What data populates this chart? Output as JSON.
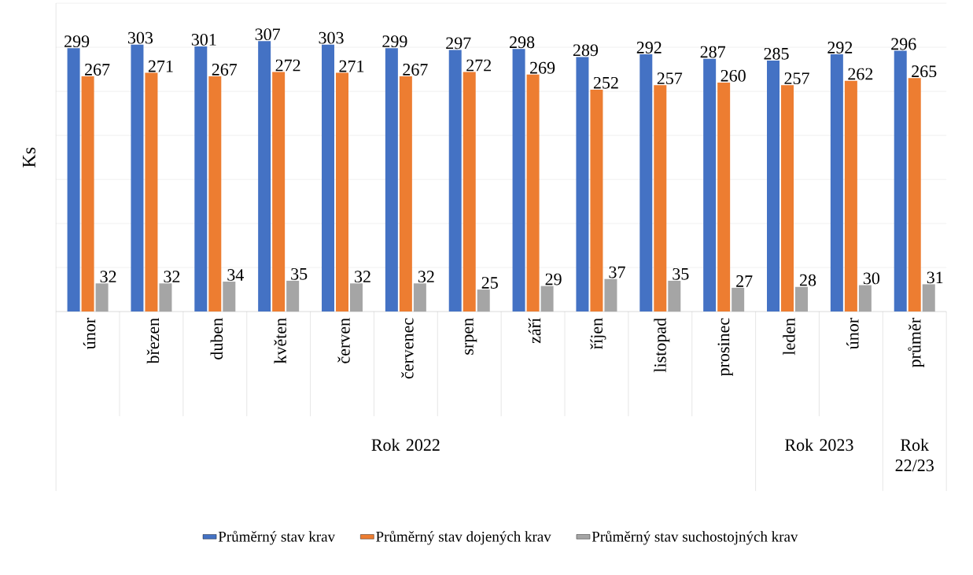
{
  "chart_data": {
    "type": "bar",
    "ylabel": "Ks",
    "categories": [
      "únor",
      "březen",
      "duben",
      "květen",
      "červen",
      "červenec",
      "srpen",
      "září",
      "říjen",
      "listopad",
      "prosinec",
      "leden",
      "únor",
      "průměr"
    ],
    "series": [
      {
        "name": "Průměrný stav krav",
        "color": "#4472c4",
        "values": [
          299,
          303,
          301,
          307,
          303,
          299,
          297,
          298,
          289,
          292,
          287,
          285,
          292,
          296
        ]
      },
      {
        "name": "Průměrný stav dojených krav",
        "color": "#ed7d31",
        "values": [
          267,
          271,
          267,
          272,
          271,
          267,
          272,
          269,
          252,
          257,
          260,
          257,
          262,
          265
        ]
      },
      {
        "name": "Průměrný stav suchostojných krav",
        "color": "#a5a5a5",
        "values": [
          32,
          32,
          34,
          35,
          32,
          32,
          25,
          29,
          37,
          35,
          27,
          28,
          30,
          31
        ]
      }
    ],
    "annotations": [
      "Rok 2022",
      "Rok 2023",
      "Rok 22/23"
    ],
    "ylim": [
      0,
      350
    ],
    "yticks": [
      {
        "value": 0,
        "label": null
      },
      {
        "value": 50,
        "label": null
      },
      {
        "value": 100,
        "label": null
      },
      {
        "value": 150,
        "label": null
      },
      {
        "value": 200,
        "label": null
      },
      {
        "value": 250,
        "label": null
      },
      {
        "value": 300,
        "label": null
      },
      {
        "value": 350,
        "label": null
      }
    ],
    "grid": "y",
    "data_labels": true,
    "legend": "bottom"
  }
}
